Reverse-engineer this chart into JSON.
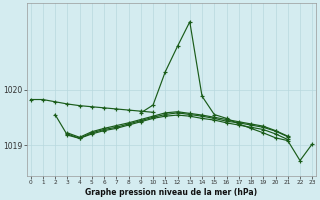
{
  "title": "Graphe pression niveau de la mer (hPa)",
  "bg_color": "#d4ecf0",
  "grid_color": "#b8d8de",
  "line_color": "#1a5c1a",
  "ylim": [
    1018.45,
    1021.55
  ],
  "yticks": [
    1019.0,
    1020.0
  ],
  "xlim": [
    -0.3,
    23.3
  ],
  "xticks": [
    0,
    1,
    2,
    3,
    4,
    5,
    6,
    7,
    8,
    9,
    10,
    11,
    12,
    13,
    14,
    15,
    16,
    17,
    18,
    19,
    20,
    21,
    22,
    23
  ],
  "line_top": {
    "x": [
      0,
      1,
      2,
      3,
      4,
      5,
      6,
      7,
      8,
      9,
      10
    ],
    "y": [
      1019.82,
      1019.82,
      1019.78,
      1019.74,
      1019.71,
      1019.69,
      1019.67,
      1019.65,
      1019.63,
      1019.61,
      1019.59
    ]
  },
  "line_spike": {
    "x": [
      9,
      10,
      11,
      12,
      13,
      14,
      15,
      16,
      17,
      18,
      19,
      20,
      21,
      22,
      23
    ],
    "y": [
      1019.58,
      1019.72,
      1020.32,
      1020.78,
      1021.22,
      1019.88,
      1019.55,
      1019.48,
      1019.38,
      1019.3,
      1019.22,
      1019.13,
      1019.08,
      1018.72,
      1019.02
    ]
  },
  "line_mid1": {
    "x": [
      2,
      3,
      4,
      5,
      6,
      7,
      8,
      9,
      10,
      11,
      12,
      13,
      14,
      15,
      16,
      17,
      18,
      19,
      20,
      21
    ],
    "y": [
      1019.55,
      1019.18,
      1019.12,
      1019.22,
      1019.28,
      1019.32,
      1019.38,
      1019.44,
      1019.5,
      1019.55,
      1019.58,
      1019.55,
      1019.52,
      1019.48,
      1019.43,
      1019.4,
      1019.36,
      1019.32,
      1019.25,
      1019.15
    ]
  },
  "line_mid2": {
    "x": [
      3,
      4,
      5,
      6,
      7,
      8,
      9,
      10,
      11,
      12,
      13,
      14,
      15,
      16,
      17,
      18,
      19,
      20,
      21
    ],
    "y": [
      1019.22,
      1019.14,
      1019.24,
      1019.3,
      1019.35,
      1019.4,
      1019.46,
      1019.52,
      1019.58,
      1019.6,
      1019.57,
      1019.54,
      1019.5,
      1019.46,
      1019.42,
      1019.38,
      1019.34,
      1019.26,
      1019.16
    ]
  },
  "line_bot": {
    "x": [
      3,
      4,
      5,
      6,
      7,
      8,
      9,
      10,
      11,
      12,
      13,
      14,
      15,
      16,
      17,
      18,
      19,
      20,
      21
    ],
    "y": [
      1019.2,
      1019.12,
      1019.2,
      1019.26,
      1019.3,
      1019.36,
      1019.42,
      1019.48,
      1019.52,
      1019.54,
      1019.52,
      1019.48,
      1019.45,
      1019.4,
      1019.36,
      1019.32,
      1019.28,
      1019.2,
      1019.1
    ]
  }
}
